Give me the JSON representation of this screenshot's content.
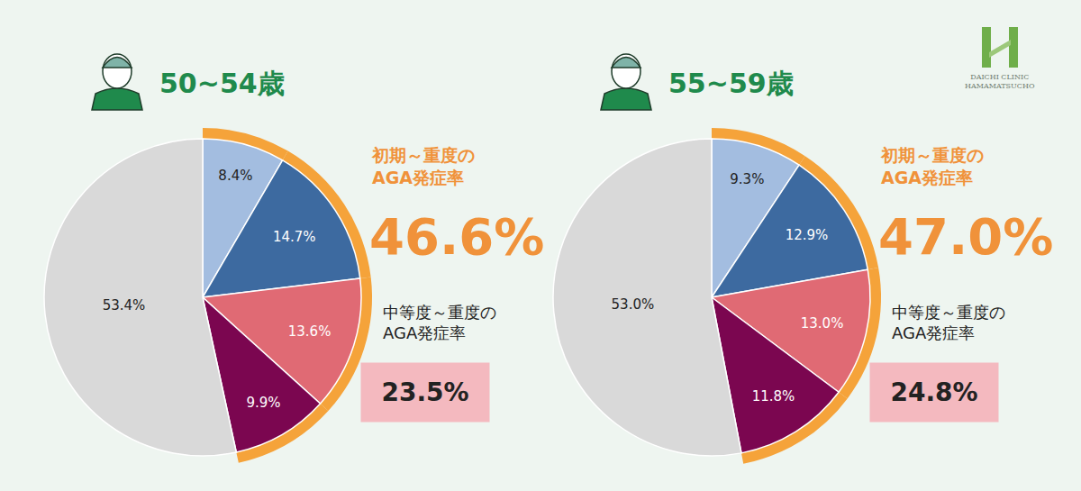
{
  "chart_data": [
    {
      "type": "pie",
      "title": "50~54歳",
      "values": [
        8.4,
        14.7,
        13.6,
        9.9,
        53.4
      ],
      "value_labels": [
        "8.4%",
        "14.7%",
        "13.6%",
        "9.9%",
        "53.4%"
      ],
      "colors": [
        "#a3bde0",
        "#3d6aa0",
        "#e06a74",
        "#7b0650",
        "#d9d9d9"
      ],
      "data_labels": true,
      "annotations": [
        {
          "text": "初期～重度のAGA発症率",
          "value": 46.6,
          "value_label": "46.6%"
        },
        {
          "text": "中等度～重度のAGA発症率",
          "value": 23.5,
          "value_label": "23.5%"
        }
      ]
    },
    {
      "type": "pie",
      "title": "55~59歳",
      "values": [
        9.3,
        12.9,
        13.0,
        11.8,
        53.0
      ],
      "value_labels": [
        "9.3%",
        "12.9%",
        "13.0%",
        "11.8%",
        "53.0%"
      ],
      "colors": [
        "#a3bde0",
        "#3d6aa0",
        "#e06a74",
        "#7b0650",
        "#d9d9d9"
      ],
      "data_labels": true,
      "annotations": [
        {
          "text": "初期～重度のAGA発症率",
          "value": 47.0,
          "value_label": "47.0%"
        },
        {
          "text": "中等度～重度のAGA発症率",
          "value": 24.8,
          "value_label": "24.8%"
        }
      ]
    }
  ],
  "logo": [
    "DAICHI CLINIC",
    "HAMAMATSUCHO"
  ]
}
